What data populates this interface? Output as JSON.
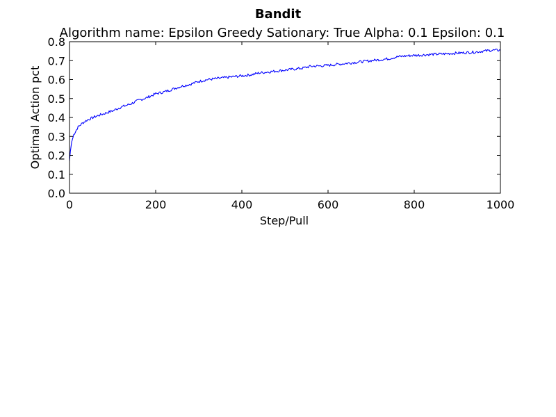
{
  "chart_data": {
    "type": "line",
    "title": "Bandit",
    "subtitle": "Algorithm name: Epsilon Greedy Sationary: True Alpha: 0.1  Epsilon: 0.1",
    "xlabel": "Step/Pull",
    "ylabel": "Optimal Action pct",
    "xlim": [
      0,
      1000
    ],
    "ylim": [
      0.0,
      0.8
    ],
    "xticks": [
      "0",
      "200",
      "400",
      "600",
      "800",
      "1000"
    ],
    "yticks": [
      "0.0",
      "0.1",
      "0.2",
      "0.3",
      "0.4",
      "0.5",
      "0.6",
      "0.7",
      "0.8"
    ],
    "grid": false,
    "series_color": "#0000ff",
    "series": [
      {
        "x": [
          0,
          2,
          5,
          10,
          15,
          20,
          30,
          40,
          50,
          60,
          80,
          100,
          120,
          140,
          160,
          180,
          200,
          220,
          240,
          260,
          280,
          300,
          320,
          340,
          360,
          380,
          400,
          420,
          440,
          460,
          480,
          500,
          520,
          540,
          560,
          580,
          600,
          620,
          640,
          660,
          680,
          700,
          720,
          740,
          760,
          780,
          800,
          820,
          840,
          860,
          880,
          900,
          920,
          940,
          960,
          980,
          1000
        ],
        "y": [
          0.17,
          0.22,
          0.27,
          0.31,
          0.33,
          0.35,
          0.37,
          0.385,
          0.395,
          0.405,
          0.42,
          0.435,
          0.455,
          0.47,
          0.49,
          0.505,
          0.525,
          0.535,
          0.55,
          0.565,
          0.575,
          0.59,
          0.6,
          0.605,
          0.61,
          0.615,
          0.62,
          0.625,
          0.635,
          0.64,
          0.645,
          0.65,
          0.655,
          0.66,
          0.67,
          0.672,
          0.675,
          0.68,
          0.685,
          0.69,
          0.695,
          0.7,
          0.705,
          0.71,
          0.72,
          0.725,
          0.728,
          0.73,
          0.733,
          0.735,
          0.737,
          0.74,
          0.742,
          0.745,
          0.75,
          0.755,
          0.755
        ]
      }
    ]
  }
}
